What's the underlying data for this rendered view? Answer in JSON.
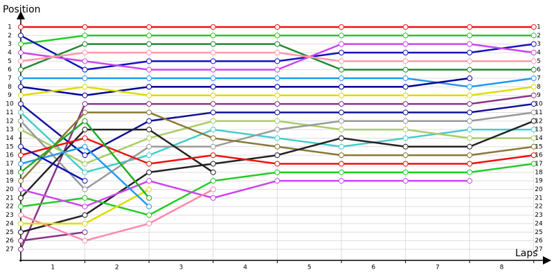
{
  "chart_data": {
    "type": "line",
    "y_label": "Position",
    "x_label": "Laps",
    "x": [
      0,
      1,
      2,
      3,
      4,
      5,
      6,
      7,
      8
    ],
    "xlim": [
      0,
      8.2
    ],
    "xticks": [
      {
        "value": 0.5,
        "label": "1"
      },
      {
        "value": 1.5,
        "label": "2"
      },
      {
        "value": 2.5,
        "label": "3"
      },
      {
        "value": 3.5,
        "label": "4"
      },
      {
        "value": 4.5,
        "label": "5"
      },
      {
        "value": 5.5,
        "label": "6"
      },
      {
        "value": 6.5,
        "label": "7"
      },
      {
        "value": 7.5,
        "label": "8"
      }
    ],
    "x_gridlines": [
      1,
      2,
      3,
      4,
      5,
      6,
      7,
      8
    ],
    "ylim": [
      0,
      28.3
    ],
    "y_inverted": true,
    "yticks": [
      1,
      2,
      3,
      4,
      5,
      6,
      7,
      8,
      9,
      10,
      11,
      12,
      13,
      14,
      15,
      16,
      17,
      18,
      19,
      20,
      21,
      22,
      23,
      24,
      25,
      26,
      27
    ],
    "grid": true,
    "series": [
      {
        "color": "#ee1111",
        "values": [
          1,
          1,
          1,
          1,
          1,
          1,
          1,
          1,
          1
        ]
      },
      {
        "color": "#22cc22",
        "values": [
          3,
          2,
          2,
          2,
          2,
          2,
          2,
          2,
          2
        ]
      },
      {
        "color": "#1111bb",
        "values": [
          2,
          6,
          5,
          5,
          5,
          4,
          4,
          4,
          3
        ]
      },
      {
        "color": "#228833",
        "values": [
          6,
          3,
          3,
          3,
          3,
          6,
          6,
          6,
          6
        ]
      },
      {
        "color": "#cc44ee",
        "values": [
          4,
          5,
          6,
          6,
          6,
          3,
          3,
          3,
          4
        ]
      },
      {
        "color": "#ff99aa",
        "values": [
          5,
          4,
          4,
          4,
          4,
          5,
          5,
          5,
          5
        ]
      },
      {
        "color": "#2299ee",
        "values": [
          7,
          7,
          7,
          7,
          7,
          7,
          7,
          8,
          7
        ]
      },
      {
        "color": "#000099",
        "values": [
          8,
          9,
          8,
          8,
          8,
          8,
          8,
          7,
          null
        ]
      },
      {
        "color": "#dddd00",
        "values": [
          9,
          8,
          9,
          9,
          9,
          9,
          9,
          9,
          8
        ]
      },
      {
        "color": "#883388",
        "values": [
          27,
          10,
          10,
          10,
          10,
          10,
          10,
          10,
          9
        ]
      },
      {
        "color": "#883388",
        "values": [
          26,
          25,
          null,
          null,
          null,
          null,
          null,
          null,
          null
        ]
      },
      {
        "color": "#111199",
        "values": [
          10,
          16,
          12,
          11,
          11,
          11,
          11,
          11,
          10
        ]
      },
      {
        "color": "#44cccc",
        "values": [
          11,
          18,
          16,
          13,
          14,
          15,
          14,
          13,
          13
        ]
      },
      {
        "color": "#aacc66",
        "values": [
          13,
          17,
          14,
          12,
          12,
          13,
          13,
          14,
          14
        ]
      },
      {
        "color": "#999999",
        "values": [
          12,
          20,
          15,
          15,
          13,
          12,
          12,
          12,
          11
        ]
      },
      {
        "color": "#887733",
        "values": [
          19,
          11,
          11,
          14,
          15,
          16,
          16,
          16,
          15
        ]
      },
      {
        "color": "#222222",
        "values": [
          25,
          23,
          18,
          17,
          16,
          14,
          15,
          15,
          12
        ]
      },
      {
        "color": "#222222",
        "values": [
          21,
          13,
          13,
          18,
          null,
          null,
          null,
          null,
          null
        ]
      },
      {
        "color": "#ee1111",
        "values": [
          16,
          14,
          17,
          16,
          17,
          17,
          17,
          17,
          16
        ]
      },
      {
        "color": "#22cc22",
        "values": [
          22,
          21,
          23,
          19,
          18,
          18,
          18,
          18,
          17
        ]
      },
      {
        "color": "#cc44ee",
        "values": [
          20,
          22,
          19,
          21,
          19,
          19,
          19,
          19,
          null
        ]
      },
      {
        "color": "#ff88aa",
        "values": [
          23,
          26,
          24,
          20,
          null,
          null,
          null,
          null,
          null
        ]
      },
      {
        "color": "#dddd00",
        "values": [
          24,
          24,
          20,
          null,
          null,
          null,
          null,
          null,
          null
        ]
      },
      {
        "color": "#2299ee",
        "values": [
          17,
          15,
          22,
          null,
          null,
          null,
          null,
          null,
          null
        ]
      },
      {
        "color": "#1111bb",
        "values": [
          15,
          19,
          null,
          null,
          null,
          null,
          null,
          null,
          null
        ]
      },
      {
        "color": "#22aa22",
        "values": [
          18,
          12,
          21,
          null,
          null,
          null,
          null,
          null,
          null
        ]
      }
    ]
  }
}
